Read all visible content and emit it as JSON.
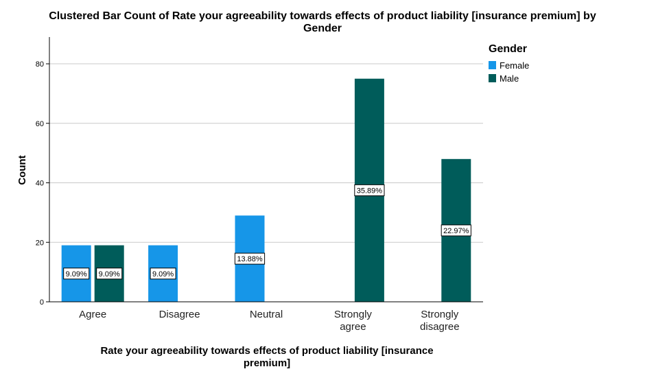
{
  "chart_data": {
    "type": "bar",
    "title_lines": [
      "Clustered Bar Count of Rate your agreeability towards effects of product liability  [insurance premium] by",
      "Gender"
    ],
    "xlabel_lines": [
      "Rate your agreeability towards effects of product liability  [insurance",
      "premium]"
    ],
    "ylabel": "Count",
    "ylim": [
      0,
      89
    ],
    "yticks": [
      0,
      20,
      40,
      60,
      80
    ],
    "grid": true,
    "legend": {
      "title": "Gender",
      "placement": "right-top"
    },
    "categories": [
      {
        "lines": [
          "Agree"
        ]
      },
      {
        "lines": [
          "Disagree"
        ]
      },
      {
        "lines": [
          "Neutral"
        ]
      },
      {
        "lines": [
          "Strongly",
          "agree"
        ]
      },
      {
        "lines": [
          "Strongly",
          "disagree"
        ]
      }
    ],
    "series": [
      {
        "name": "Female",
        "color": "#1696e8",
        "values": [
          19,
          19,
          29,
          0,
          0
        ],
        "labels": [
          "9.09%",
          "9.09%",
          "13.88%",
          "",
          ""
        ]
      },
      {
        "name": "Male",
        "color": "#005c5a",
        "values": [
          19,
          0,
          0,
          75,
          48
        ],
        "labels": [
          "9.09%",
          "",
          "",
          "35.89%",
          "22.97%"
        ]
      }
    ]
  }
}
